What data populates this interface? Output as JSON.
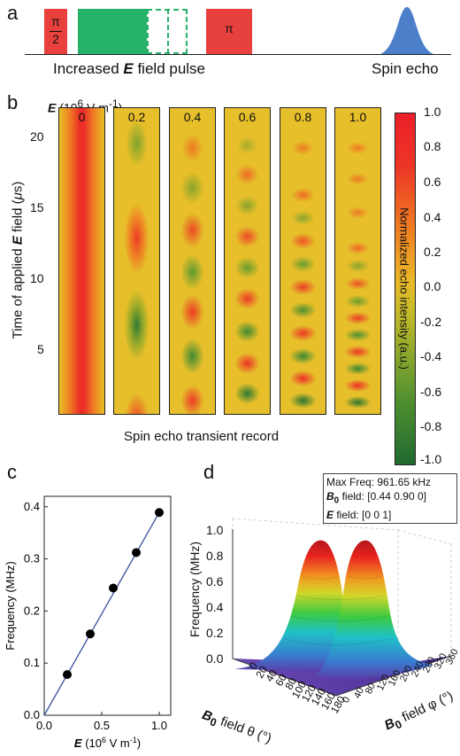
{
  "panel_a": {
    "letter": "a",
    "pulse1": {
      "numerator": "π",
      "denominator": "2"
    },
    "pulse2_label": "π",
    "pulse_label": "Increased ",
    "pulse_label_E": "E",
    "pulse_label_tail": " field pulse",
    "echo_label": "Spin echo",
    "colors": {
      "red": "#e8403d",
      "green": "#27b26a",
      "echo": "#4c7fc9"
    }
  },
  "panel_b": {
    "letter": "b",
    "e_header": "E",
    "e_unit_prefix": " (10",
    "e_unit_exp": "6",
    "e_unit_suffix": " V m",
    "e_unit_exp2": "-1",
    "e_unit_close": ")",
    "ylabel_prefix": "Time of applied ",
    "ylabel_E": "E",
    "ylabel_suffix": " field (",
    "ylabel_mu": "μ",
    "ylabel_end": "s)",
    "y_ticks": [
      "20",
      "15",
      "10",
      "5"
    ],
    "xlabel": "Spin echo transient record",
    "columns": [
      {
        "label": "0",
        "E": 0.0
      },
      {
        "label": "0.2",
        "E": 0.2
      },
      {
        "label": "0.4",
        "E": 0.4
      },
      {
        "label": "0.6",
        "E": 0.6
      },
      {
        "label": "0.8",
        "E": 0.8
      },
      {
        "label": "1.0",
        "E": 1.0
      }
    ],
    "colorbar": {
      "title": "Normalized echo intensity (a.u.)",
      "ticks": [
        "1.0",
        "0.8",
        "0.6",
        "0.4",
        "0.2",
        "0.0",
        "-0.2",
        "-0.4",
        "-0.6",
        "-0.8",
        "-1.0"
      ]
    }
  },
  "panel_c": {
    "letter": "c",
    "chart_data": {
      "type": "scatter",
      "x": [
        0.2,
        0.4,
        0.6,
        0.8,
        1.0
      ],
      "y": [
        0.078,
        0.156,
        0.244,
        0.312,
        0.389
      ],
      "fit_line": {
        "x": [
          0.0,
          1.0
        ],
        "y": [
          0.0,
          0.389
        ]
      },
      "xlabel": "E",
      "xlabel_unit_prefix": " (10",
      "xlabel_unit_exp": "6",
      "xlabel_unit_suffix": " V m",
      "xlabel_unit_exp2": "-1",
      "xlabel_unit_close": ")",
      "ylabel": "Frequency (MHz)",
      "xlim": [
        0,
        1.1
      ],
      "ylim": [
        0,
        0.42
      ],
      "x_ticks": [
        "0.0",
        "0.5",
        "1.0"
      ],
      "y_ticks": [
        "0.0",
        "0.1",
        "0.2",
        "0.3",
        "0.4"
      ],
      "line_color": "#3a4fa3",
      "marker_color": "#000000"
    }
  },
  "panel_d": {
    "letter": "d",
    "info_line1": "Max Freq: 961.65 kHz",
    "info_B": "B",
    "info_B_sub": "0",
    "info_line2_rest": " field: [0.44 0.90 0]",
    "info_E": "E",
    "info_line3_rest": " field: [0 0 1]",
    "zlabel": "Frequency (MHz)",
    "z_ticks": [
      "1.0",
      "0.8",
      "0.6",
      "0.4",
      "0.2",
      "0.0"
    ],
    "theta_ticks": [
      "0",
      "20",
      "40",
      "60",
      "80",
      "100",
      "120",
      "140",
      "160",
      "180"
    ],
    "phi_ticks": [
      "0",
      "40",
      "80",
      "120",
      "160",
      "200",
      "240",
      "280",
      "320",
      "360"
    ],
    "theta_label_B": "B",
    "theta_label_sub": "0",
    "theta_label_rest": " field θ (°)",
    "phi_label_B": "B",
    "phi_label_sub": "0",
    "phi_label_rest": " field φ (°)"
  }
}
